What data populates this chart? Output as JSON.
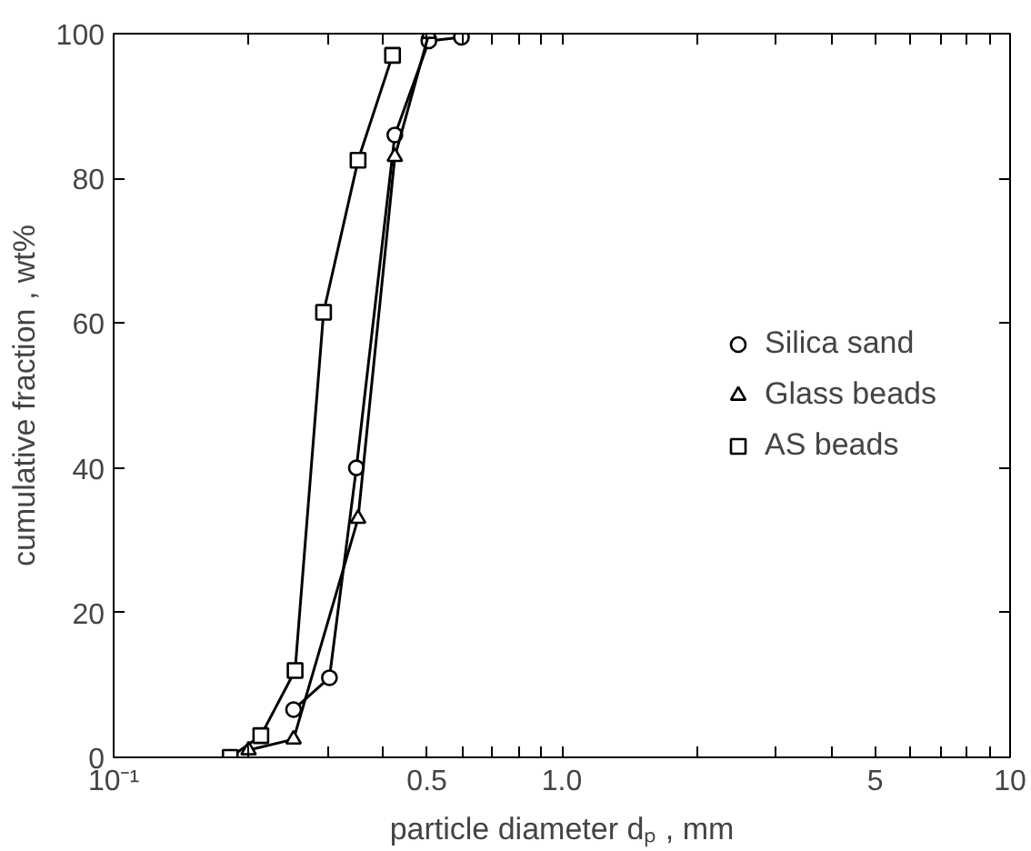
{
  "chart_data": {
    "type": "line",
    "xlabel": "particle diameter dₚ , mm",
    "ylabel": "cumulative fraction , wt%",
    "log": "x",
    "xlim": [
      0.1,
      10
    ],
    "ylim": [
      0,
      100
    ],
    "xticks": [
      {
        "value": 0.1,
        "label": "10⁻¹"
      },
      {
        "value": 0.2,
        "label": null
      },
      {
        "value": 0.3,
        "label": null
      },
      {
        "value": 0.4,
        "label": null
      },
      0.5,
      {
        "value": 0.6,
        "label": null
      },
      {
        "value": 0.7,
        "label": null
      },
      {
        "value": 0.8,
        "label": null
      },
      {
        "value": 0.9,
        "label": null
      },
      {
        "value": 1,
        "label": "1.0"
      },
      {
        "value": 2,
        "label": null
      },
      {
        "value": 3,
        "label": null
      },
      {
        "value": 4,
        "label": null
      },
      5,
      {
        "value": 6,
        "label": null
      },
      {
        "value": 7,
        "label": null
      },
      {
        "value": 8,
        "label": null
      },
      {
        "value": 9,
        "label": null
      },
      10
    ],
    "yticks": [
      0,
      20,
      40,
      60,
      80,
      100
    ],
    "grid": false,
    "legend": "right",
    "series": [
      {
        "name": "Silica sand",
        "color": "#000000",
        "marker": "circle",
        "x": [
          0.252,
          0.303,
          0.348,
          0.424,
          0.505,
          0.597
        ],
        "values": [
          6.6,
          11,
          40,
          86,
          99,
          99.5
        ]
      },
      {
        "name": "Glass beads",
        "color": "#000000",
        "marker": "triangle",
        "x": [
          0.2,
          0.252,
          0.351,
          0.424,
          0.505
        ],
        "values": [
          1,
          2.5,
          33,
          83,
          100
        ]
      },
      {
        "name": "AS beads",
        "color": "#000000",
        "marker": "square",
        "x": [
          0.182,
          0.213,
          0.254,
          0.294,
          0.351,
          0.419
        ],
        "values": [
          0,
          3,
          12,
          61.5,
          82.5,
          97
        ]
      }
    ]
  }
}
